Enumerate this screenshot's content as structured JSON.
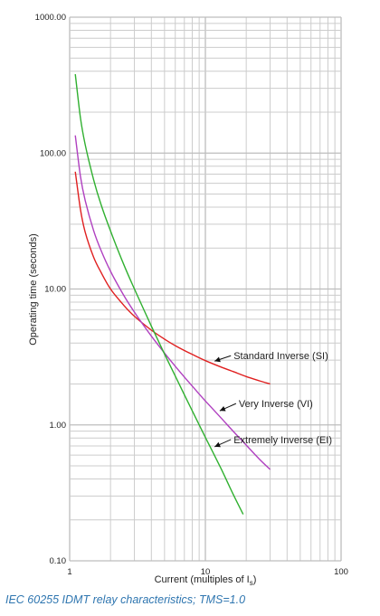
{
  "chart_data": {
    "type": "line",
    "xscale": "log",
    "yscale": "log",
    "xlim": [
      1,
      100
    ],
    "ylim": [
      0.1,
      1000
    ],
    "grid": true,
    "xlabel": "Current (multiples of I",
    "xlabel_sub": "s",
    "xlabel_end": ")",
    "ylabel": "Operating time (seconds)",
    "x_ticks": [
      1,
      10,
      100
    ],
    "x_tick_labels": [
      "1",
      "10",
      "100"
    ],
    "y_ticks": [
      0.1,
      1,
      10,
      100,
      1000
    ],
    "y_tick_labels": [
      "0.10",
      "1.00",
      "10.00",
      "100.00",
      "1000.00"
    ],
    "series": [
      {
        "name": "Standard Inverse (SI)",
        "color": "#e02020",
        "x": [
          1.1,
          1.2,
          1.3,
          1.5,
          1.7,
          2,
          2.5,
          3,
          4,
          5,
          6,
          8,
          10,
          13,
          16,
          20,
          25,
          30
        ],
        "y": [
          73,
          38.6,
          26.3,
          17.2,
          13.3,
          10.0,
          7.6,
          6.3,
          4.98,
          4.28,
          3.83,
          3.3,
          2.97,
          2.67,
          2.47,
          2.27,
          2.11,
          2.0
        ]
      },
      {
        "name": "Very Inverse (VI)",
        "color": "#b040c0",
        "x": [
          1.1,
          1.2,
          1.3,
          1.5,
          1.7,
          2,
          2.5,
          3,
          4,
          5,
          6,
          8,
          10,
          13,
          16,
          20,
          25,
          30
        ],
        "y": [
          135,
          67.5,
          45,
          27,
          19.3,
          13.5,
          9.0,
          6.75,
          4.5,
          3.38,
          2.7,
          1.93,
          1.5,
          1.13,
          0.9,
          0.71,
          0.56,
          0.47
        ]
      },
      {
        "name": "Extremely Inverse (EI)",
        "color": "#30b030",
        "x": [
          1.1,
          1.2,
          1.3,
          1.5,
          1.7,
          2,
          2.5,
          3,
          4,
          5,
          6,
          8,
          10,
          13,
          16,
          19
        ],
        "y": [
          381,
          182,
          116,
          64,
          42,
          26.7,
          15.2,
          10,
          5.33,
          3.33,
          2.29,
          1.27,
          0.81,
          0.48,
          0.31,
          0.22
        ]
      }
    ],
    "annotations": [
      {
        "text": "Standard Inverse (SI)",
        "series": 0,
        "x": 11,
        "y": 2.8
      },
      {
        "text": "Very Inverse (VI)",
        "series": 1,
        "x": 12,
        "y": 1.2
      },
      {
        "text": "Extremely Inverse (EI)",
        "series": 2,
        "x": 11,
        "y": 0.55
      }
    ]
  },
  "caption": "IEC 60255 IDMT relay characteristics; TMS=1.0"
}
